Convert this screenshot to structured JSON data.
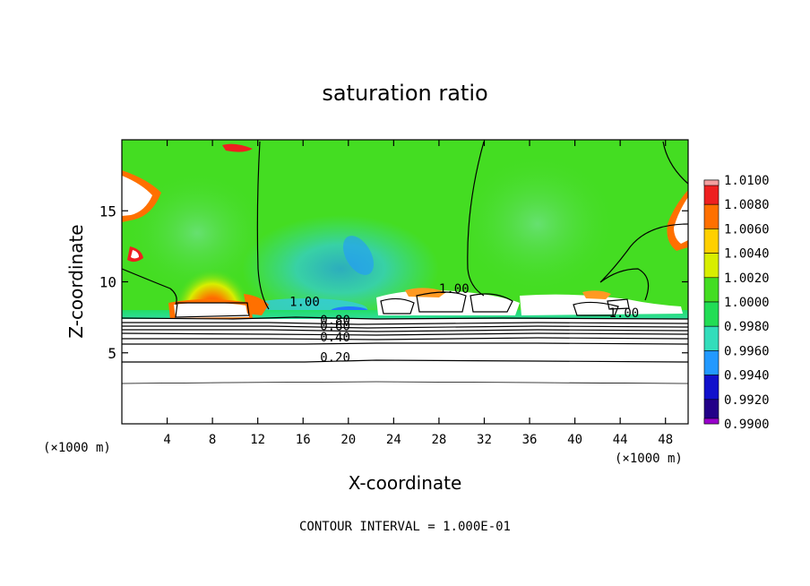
{
  "chart_data": {
    "type": "heatmap",
    "title": "saturation ratio",
    "xlabel": "X-coordinate",
    "ylabel": "Z-coordinate",
    "x_unit_left": "(×1000 m)",
    "x_unit_right": "(×1000 m)",
    "xlim": [
      0,
      50
    ],
    "ylim": [
      0,
      20
    ],
    "x_ticks": [
      4,
      8,
      12,
      16,
      20,
      24,
      28,
      32,
      36,
      40,
      44,
      48
    ],
    "y_ticks": [
      5,
      10,
      15
    ],
    "colorbar": {
      "levels": [
        "1.0100",
        "1.0080",
        "1.0060",
        "1.0040",
        "1.0020",
        "1.0000",
        "0.9980",
        "0.9960",
        "0.9940",
        "0.9920",
        "0.9900"
      ],
      "colors": [
        "#f4a0a0",
        "#ee2020",
        "#ff7000",
        "#ffd000",
        "#d8ee00",
        "#44dd22",
        "#22dd55",
        "#33ddbb",
        "#2299ff",
        "#1111cc",
        "#220088",
        "#9900cc"
      ]
    },
    "contour_labels": [
      {
        "text": "1.00",
        "x": 14.8,
        "y": 8.3
      },
      {
        "text": "0.80",
        "x": 17.5,
        "y": 7.0
      },
      {
        "text": "0.60",
        "x": 17.5,
        "y": 6.6
      },
      {
        "text": "0.40",
        "x": 17.5,
        "y": 5.8
      },
      {
        "text": "0.20",
        "x": 17.5,
        "y": 4.4
      },
      {
        "text": "1.00",
        "x": 28.0,
        "y": 9.2
      },
      {
        "text": "1.00",
        "x": 43.0,
        "y": 7.5
      }
    ],
    "footer": "CONTOUR INTERVAL = 1.000E-01"
  }
}
